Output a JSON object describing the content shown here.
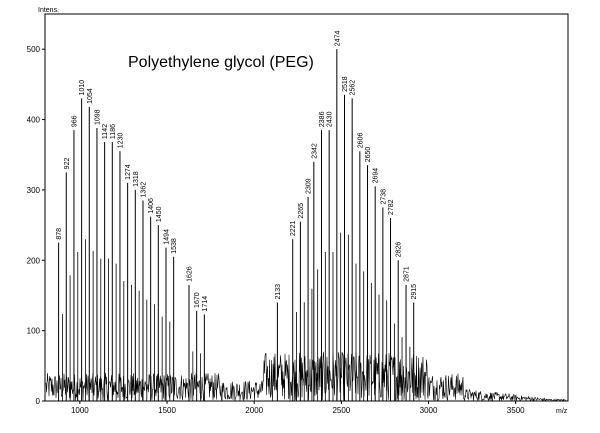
{
  "chart_data": {
    "type": "line",
    "title": "Polyethylene glycol (PEG)",
    "ylabel": "Intens.",
    "xlabel": "m/z",
    "xlim": [
      800,
      3800
    ],
    "ylim": [
      0,
      550
    ],
    "x_ticks": [
      1000,
      1500,
      2000,
      2500,
      3000,
      3500
    ],
    "y_ticks": [
      0,
      100,
      200,
      300,
      400,
      500
    ],
    "grid": false,
    "peaks": [
      {
        "label": "878",
        "x": 878,
        "y": 225
      },
      {
        "label": "922",
        "x": 922,
        "y": 325
      },
      {
        "label": "966",
        "x": 966,
        "y": 385
      },
      {
        "label": "1010",
        "x": 1010,
        "y": 430
      },
      {
        "label": "1054",
        "x": 1054,
        "y": 418
      },
      {
        "label": "1098",
        "x": 1098,
        "y": 388
      },
      {
        "label": "1142",
        "x": 1142,
        "y": 368
      },
      {
        "label": "1186",
        "x": 1186,
        "y": 368
      },
      {
        "label": "1230",
        "x": 1230,
        "y": 355
      },
      {
        "label": "1274",
        "x": 1274,
        "y": 310
      },
      {
        "label": "1318",
        "x": 1318,
        "y": 300
      },
      {
        "label": "1362",
        "x": 1362,
        "y": 285
      },
      {
        "label": "1406",
        "x": 1406,
        "y": 262
      },
      {
        "label": "1450",
        "x": 1450,
        "y": 250
      },
      {
        "label": "1494",
        "x": 1494,
        "y": 218
      },
      {
        "label": "1538",
        "x": 1538,
        "y": 205
      },
      {
        "label": "1626",
        "x": 1626,
        "y": 165
      },
      {
        "label": "1670",
        "x": 1670,
        "y": 128
      },
      {
        "label": "1714",
        "x": 1714,
        "y": 123
      },
      {
        "label": "2133",
        "x": 2133,
        "y": 140
      },
      {
        "label": "2221",
        "x": 2221,
        "y": 230
      },
      {
        "label": "2265",
        "x": 2265,
        "y": 255
      },
      {
        "label": "2309",
        "x": 2309,
        "y": 290
      },
      {
        "label": "2342",
        "x": 2342,
        "y": 340
      },
      {
        "label": "2386",
        "x": 2386,
        "y": 385
      },
      {
        "label": "2430",
        "x": 2430,
        "y": 385
      },
      {
        "label": "2474",
        "x": 2474,
        "y": 500
      },
      {
        "label": "2518",
        "x": 2518,
        "y": 435
      },
      {
        "label": "2562",
        "x": 2562,
        "y": 430
      },
      {
        "label": "2606",
        "x": 2606,
        "y": 355
      },
      {
        "label": "2650",
        "x": 2650,
        "y": 335
      },
      {
        "label": "2694",
        "x": 2694,
        "y": 305
      },
      {
        "label": "2738",
        "x": 2738,
        "y": 275
      },
      {
        "label": "2782",
        "x": 2782,
        "y": 260
      },
      {
        "label": "2826",
        "x": 2826,
        "y": 200
      },
      {
        "label": "2871",
        "x": 2871,
        "y": 165
      },
      {
        "label": "2915",
        "x": 2915,
        "y": 140
      }
    ]
  }
}
